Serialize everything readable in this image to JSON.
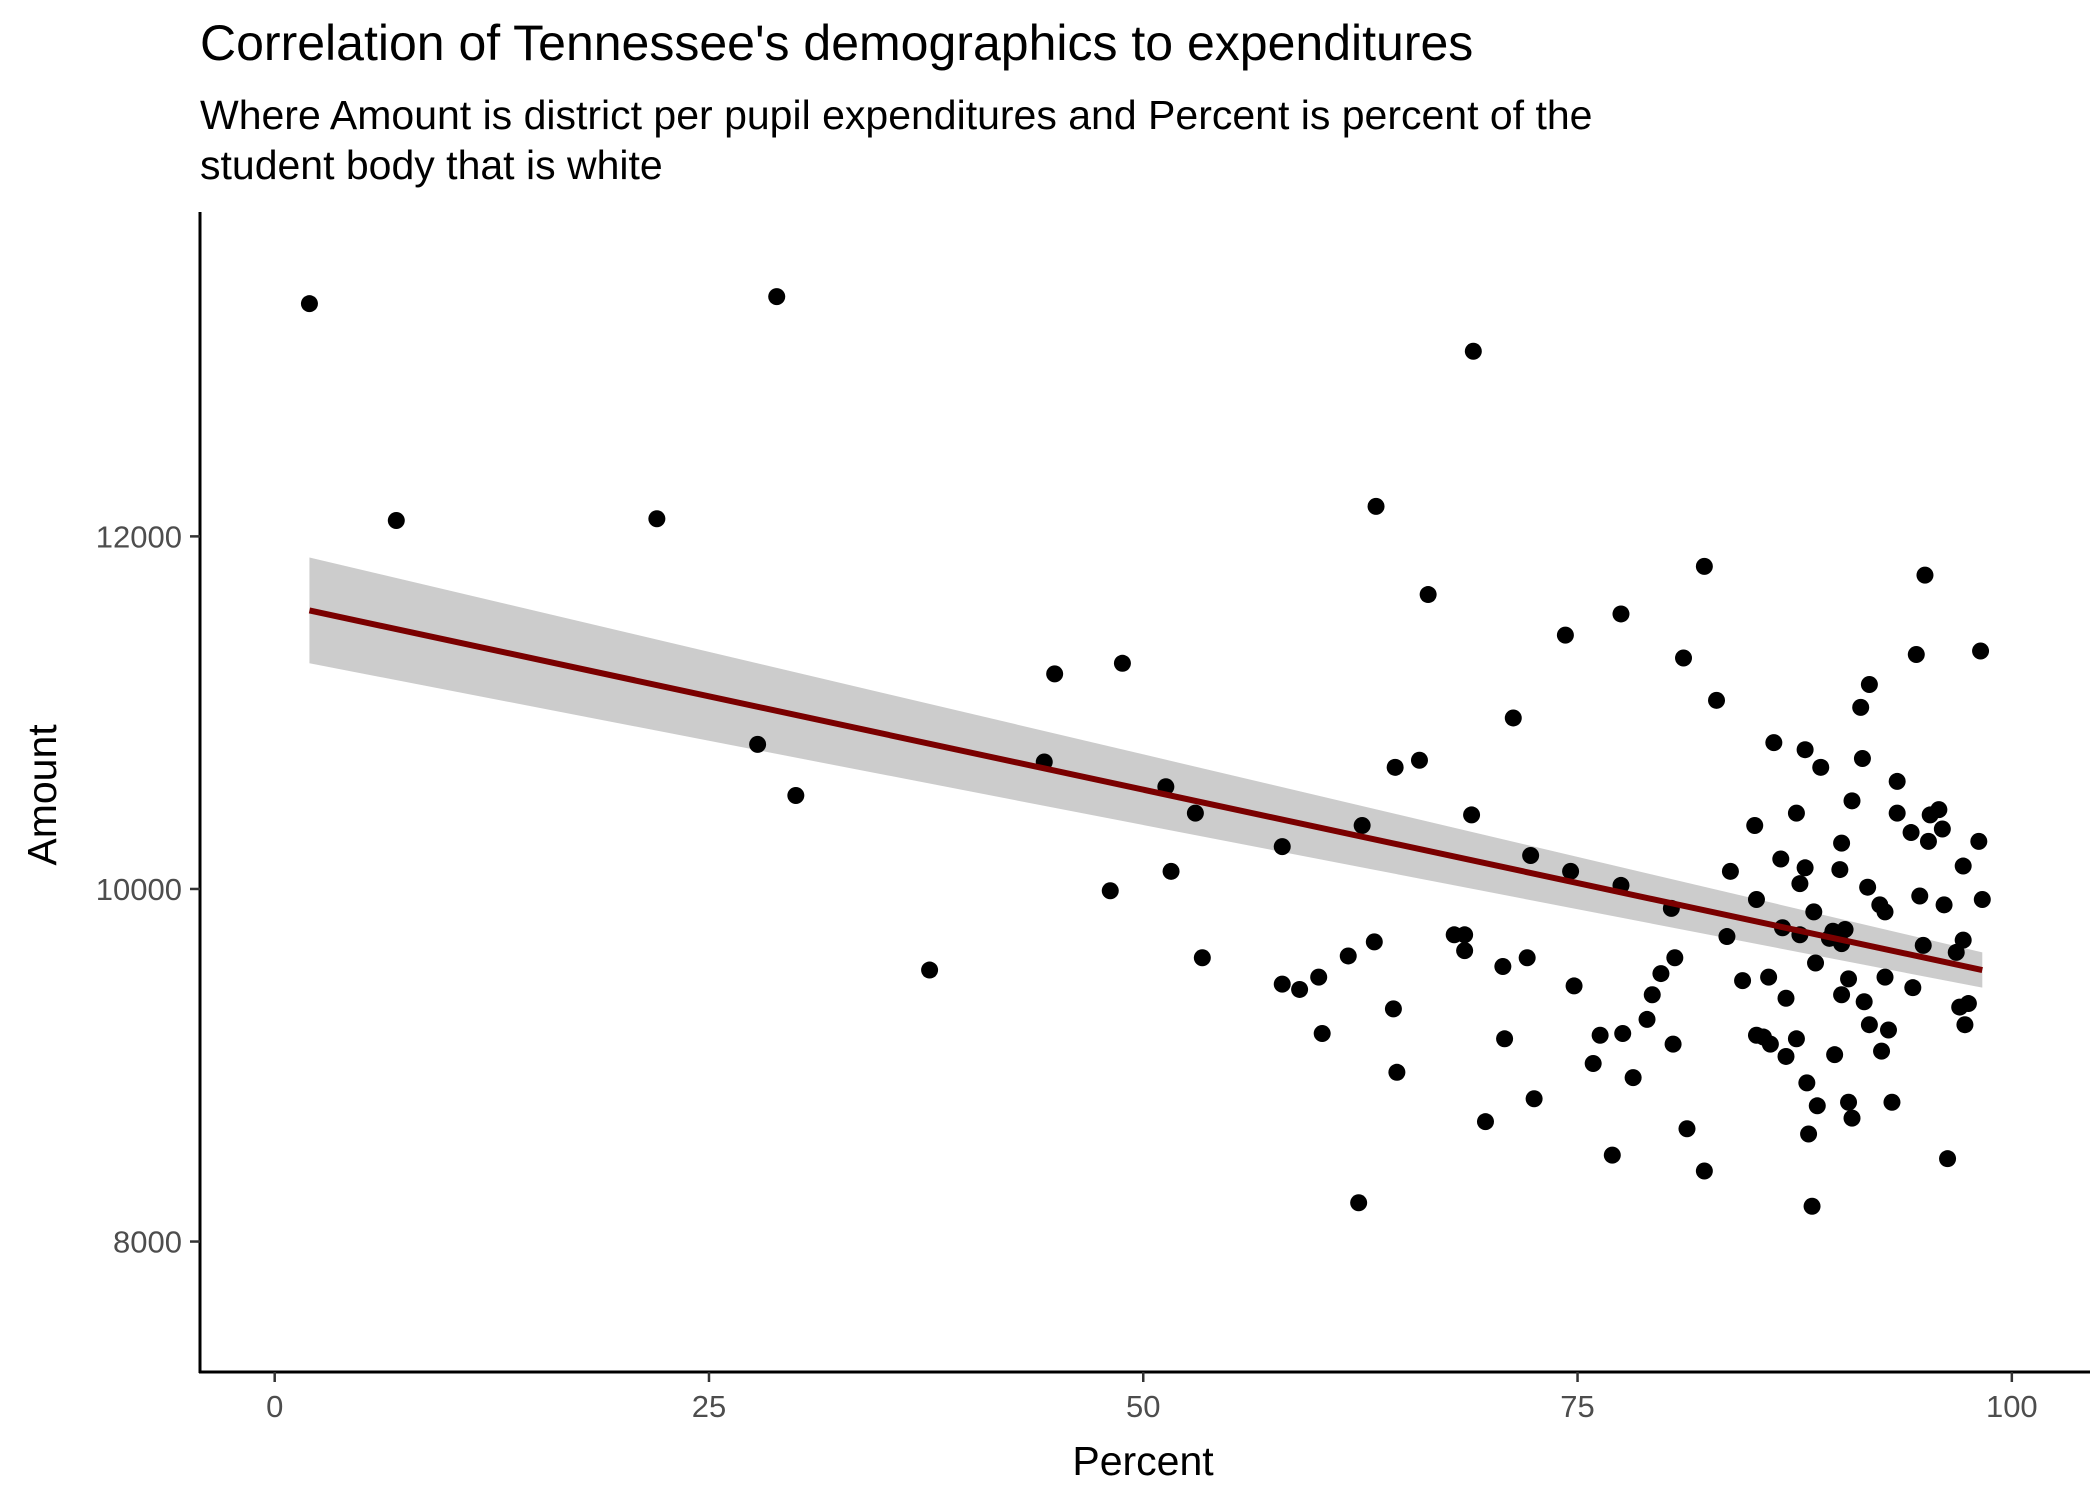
{
  "chart_data": {
    "type": "scatter",
    "title": "Correlation of Tennessee's demographics to expenditures",
    "subtitle": "Where Amount is district per pupil expenditures and Percent is percent of the student body that is white",
    "xlabel": "Percent",
    "ylabel": "Amount",
    "xlim": [
      -4.3,
      104.5
    ],
    "ylim": [
      7260,
      13840
    ],
    "x_ticks": [
      0,
      25,
      50,
      75,
      100
    ],
    "y_ticks": [
      8000,
      10000,
      12000
    ],
    "grid": false,
    "points": [
      {
        "x": 2.0,
        "y": 13320
      },
      {
        "x": 7.0,
        "y": 12090
      },
      {
        "x": 22.0,
        "y": 12100
      },
      {
        "x": 27.8,
        "y": 10820
      },
      {
        "x": 28.9,
        "y": 13360
      },
      {
        "x": 30.0,
        "y": 10530
      },
      {
        "x": 37.7,
        "y": 9540
      },
      {
        "x": 44.3,
        "y": 10720
      },
      {
        "x": 44.9,
        "y": 11220
      },
      {
        "x": 48.1,
        "y": 9990
      },
      {
        "x": 48.8,
        "y": 11280
      },
      {
        "x": 51.3,
        "y": 10580
      },
      {
        "x": 51.6,
        "y": 10100
      },
      {
        "x": 53.0,
        "y": 10430
      },
      {
        "x": 53.4,
        "y": 9610
      },
      {
        "x": 58.0,
        "y": 10240
      },
      {
        "x": 58.0,
        "y": 9460
      },
      {
        "x": 59.0,
        "y": 9430
      },
      {
        "x": 60.1,
        "y": 9500
      },
      {
        "x": 60.3,
        "y": 9180
      },
      {
        "x": 61.8,
        "y": 9620
      },
      {
        "x": 62.4,
        "y": 8220
      },
      {
        "x": 62.6,
        "y": 10360
      },
      {
        "x": 63.3,
        "y": 9700
      },
      {
        "x": 63.4,
        "y": 12170
      },
      {
        "x": 64.4,
        "y": 9320
      },
      {
        "x": 64.5,
        "y": 10690
      },
      {
        "x": 64.6,
        "y": 8960
      },
      {
        "x": 65.9,
        "y": 10730
      },
      {
        "x": 66.4,
        "y": 11670
      },
      {
        "x": 67.9,
        "y": 9740
      },
      {
        "x": 68.5,
        "y": 9650
      },
      {
        "x": 68.5,
        "y": 9740
      },
      {
        "x": 68.9,
        "y": 10420
      },
      {
        "x": 69.0,
        "y": 13050
      },
      {
        "x": 69.7,
        "y": 8680
      },
      {
        "x": 70.7,
        "y": 9560
      },
      {
        "x": 70.8,
        "y": 9150
      },
      {
        "x": 71.3,
        "y": 10970
      },
      {
        "x": 72.1,
        "y": 9610
      },
      {
        "x": 72.3,
        "y": 10190
      },
      {
        "x": 72.5,
        "y": 8810
      },
      {
        "x": 74.3,
        "y": 11440
      },
      {
        "x": 74.6,
        "y": 10100
      },
      {
        "x": 74.8,
        "y": 9450
      },
      {
        "x": 75.9,
        "y": 9010
      },
      {
        "x": 76.3,
        "y": 9170
      },
      {
        "x": 77.0,
        "y": 8490
      },
      {
        "x": 77.5,
        "y": 11560
      },
      {
        "x": 77.5,
        "y": 10020
      },
      {
        "x": 77.6,
        "y": 9180
      },
      {
        "x": 78.2,
        "y": 8930
      },
      {
        "x": 79.0,
        "y": 9260
      },
      {
        "x": 79.3,
        "y": 9400
      },
      {
        "x": 79.8,
        "y": 9520
      },
      {
        "x": 80.4,
        "y": 9890
      },
      {
        "x": 80.6,
        "y": 9610
      },
      {
        "x": 80.5,
        "y": 9120
      },
      {
        "x": 81.1,
        "y": 11310
      },
      {
        "x": 81.3,
        "y": 8640
      },
      {
        "x": 82.3,
        "y": 11830
      },
      {
        "x": 82.3,
        "y": 8400
      },
      {
        "x": 83.0,
        "y": 11070
      },
      {
        "x": 83.6,
        "y": 9730
      },
      {
        "x": 83.8,
        "y": 10100
      },
      {
        "x": 84.5,
        "y": 9480
      },
      {
        "x": 85.2,
        "y": 10360
      },
      {
        "x": 85.3,
        "y": 9940
      },
      {
        "x": 85.3,
        "y": 9170
      },
      {
        "x": 85.7,
        "y": 9160
      },
      {
        "x": 86.0,
        "y": 9500
      },
      {
        "x": 86.1,
        "y": 9120
      },
      {
        "x": 86.3,
        "y": 10830
      },
      {
        "x": 86.7,
        "y": 10170
      },
      {
        "x": 86.8,
        "y": 9780
      },
      {
        "x": 87.0,
        "y": 9380
      },
      {
        "x": 87.0,
        "y": 9050
      },
      {
        "x": 87.6,
        "y": 10430
      },
      {
        "x": 87.6,
        "y": 9150
      },
      {
        "x": 87.8,
        "y": 10030
      },
      {
        "x": 87.8,
        "y": 9740
      },
      {
        "x": 88.1,
        "y": 10120
      },
      {
        "x": 88.1,
        "y": 10790
      },
      {
        "x": 88.2,
        "y": 8900
      },
      {
        "x": 88.3,
        "y": 8610
      },
      {
        "x": 88.5,
        "y": 8200
      },
      {
        "x": 88.6,
        "y": 9870
      },
      {
        "x": 88.7,
        "y": 9580
      },
      {
        "x": 88.8,
        "y": 8770
      },
      {
        "x": 89.0,
        "y": 10690
      },
      {
        "x": 89.5,
        "y": 9720
      },
      {
        "x": 89.7,
        "y": 9760
      },
      {
        "x": 89.8,
        "y": 9060
      },
      {
        "x": 90.1,
        "y": 10110
      },
      {
        "x": 90.2,
        "y": 9400
      },
      {
        "x": 90.2,
        "y": 9690
      },
      {
        "x": 90.2,
        "y": 10260
      },
      {
        "x": 90.4,
        "y": 9770
      },
      {
        "x": 90.6,
        "y": 9490
      },
      {
        "x": 90.6,
        "y": 8790
      },
      {
        "x": 90.8,
        "y": 10500
      },
      {
        "x": 90.8,
        "y": 8700
      },
      {
        "x": 91.3,
        "y": 11030
      },
      {
        "x": 91.4,
        "y": 10740
      },
      {
        "x": 91.5,
        "y": 9360
      },
      {
        "x": 91.7,
        "y": 10010
      },
      {
        "x": 91.8,
        "y": 9230
      },
      {
        "x": 91.8,
        "y": 11160
      },
      {
        "x": 92.4,
        "y": 9910
      },
      {
        "x": 92.5,
        "y": 9080
      },
      {
        "x": 92.7,
        "y": 9500
      },
      {
        "x": 92.7,
        "y": 9870
      },
      {
        "x": 92.9,
        "y": 9200
      },
      {
        "x": 93.1,
        "y": 8790
      },
      {
        "x": 93.4,
        "y": 10610
      },
      {
        "x": 93.4,
        "y": 10430
      },
      {
        "x": 94.2,
        "y": 10320
      },
      {
        "x": 94.3,
        "y": 9440
      },
      {
        "x": 94.5,
        "y": 11330
      },
      {
        "x": 94.7,
        "y": 9960
      },
      {
        "x": 94.9,
        "y": 9680
      },
      {
        "x": 95.0,
        "y": 11780
      },
      {
        "x": 95.2,
        "y": 10270
      },
      {
        "x": 95.3,
        "y": 10420
      },
      {
        "x": 95.8,
        "y": 10450
      },
      {
        "x": 96.0,
        "y": 10340
      },
      {
        "x": 96.1,
        "y": 9910
      },
      {
        "x": 96.3,
        "y": 8470
      },
      {
        "x": 96.8,
        "y": 9640
      },
      {
        "x": 97.0,
        "y": 9330
      },
      {
        "x": 97.2,
        "y": 9710
      },
      {
        "x": 97.2,
        "y": 10130
      },
      {
        "x": 97.3,
        "y": 9230
      },
      {
        "x": 97.5,
        "y": 9350
      },
      {
        "x": 98.1,
        "y": 10270
      },
      {
        "x": 98.2,
        "y": 11350
      },
      {
        "x": 98.3,
        "y": 9940
      }
    ],
    "trend": {
      "type": "linear",
      "x": [
        2.0,
        98.3
      ],
      "y": [
        11580,
        9540
      ],
      "ci_lower": [
        11280,
        9440
      ],
      "ci_upper": [
        11880,
        9640
      ],
      "color": "#7a0000",
      "band_color": "#cccccc"
    },
    "point_color": "#000000"
  }
}
